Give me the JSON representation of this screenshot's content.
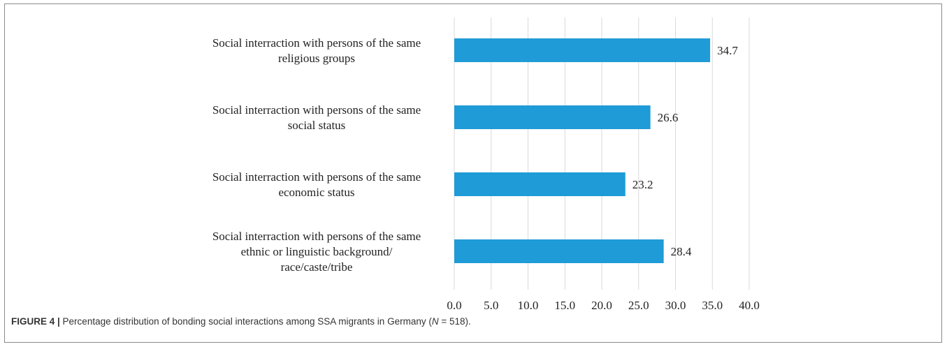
{
  "figure": {
    "label": "FIGURE 4 |",
    "caption_before_n": " Percentage distribution of bonding social interactions among SSA migrants in Germany (",
    "n_symbol": "N",
    "caption_after_n": " = 518)."
  },
  "chart_data": {
    "type": "bar",
    "orientation": "horizontal",
    "categories": [
      [
        "Social interraction with persons of the same",
        "religious groups"
      ],
      [
        "Social interraction with persons of the same",
        "social status"
      ],
      [
        "Social interraction with persons of the same",
        "economic status"
      ],
      [
        "Social interraction with persons of the same",
        "ethnic or linguistic background/",
        "race/caste/tribe"
      ]
    ],
    "values": [
      34.7,
      26.6,
      23.2,
      28.4
    ],
    "value_labels": [
      "34.7",
      "26.6",
      "23.2",
      "28.4"
    ],
    "xlim": [
      0,
      40
    ],
    "ticks": [
      "0.0",
      "5.0",
      "10.0",
      "15.0",
      "20.0",
      "25.0",
      "30.0",
      "35.0",
      "40.0"
    ],
    "title": "",
    "xlabel": "",
    "ylabel": "",
    "grid": "vertical",
    "bar_color": "#1f9bd7",
    "grid_color": "#d9d9d9"
  }
}
